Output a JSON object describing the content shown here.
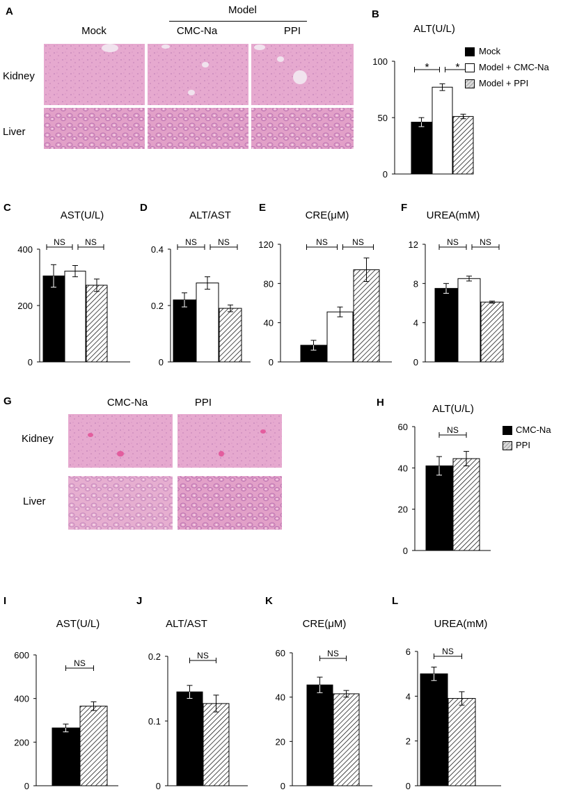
{
  "panels": {
    "A": "A",
    "B": "B",
    "C": "C",
    "D": "D",
    "E": "E",
    "F": "F",
    "G": "G",
    "H": "H",
    "I": "I",
    "J": "J",
    "K": "K",
    "L": "L"
  },
  "histology_top": {
    "group_header": "Model",
    "columns": [
      "Mock",
      "CMC-Na",
      "PPI"
    ],
    "rows": [
      "Kidney",
      "Liver"
    ]
  },
  "histology_bottom": {
    "columns": [
      "CMC-Na",
      "PPI"
    ],
    "rows": [
      "Kidney",
      "Liver"
    ]
  },
  "legend_top": [
    "Mock",
    "Model + CMC-Na",
    "Model + PPI"
  ],
  "legend_bottom": [
    "CMC-Na",
    "PPI"
  ],
  "colors": {
    "black_bar": "#000000",
    "white_bar": "#ffffff",
    "tissue_pink": "#e3a3cb",
    "tissue_dark": "#d886c0"
  },
  "chart_data": [
    {
      "panel": "B",
      "type": "bar",
      "title": "ALT(U/L)",
      "categories": [
        "Mock",
        "Model + CMC-Na",
        "Model + PPI"
      ],
      "values": [
        46,
        77,
        51
      ],
      "errors": [
        4,
        3,
        2
      ],
      "yticks": [
        0,
        50,
        100
      ],
      "ylim": [
        0,
        100
      ],
      "significance": [
        "*",
        "*"
      ],
      "legend_placement": "right"
    },
    {
      "panel": "C",
      "type": "bar",
      "title": "AST(U/L)",
      "categories": [
        "Mock",
        "Model + CMC-Na",
        "Model + PPI"
      ],
      "values": [
        305,
        322,
        272
      ],
      "errors": [
        40,
        20,
        22
      ],
      "yticks": [
        0,
        200,
        400
      ],
      "ylim": [
        0,
        400
      ],
      "significance": [
        "NS",
        "NS"
      ]
    },
    {
      "panel": "D",
      "type": "bar",
      "title": "ALT/AST",
      "categories": [
        "Mock",
        "Model + CMC-Na",
        "Model + PPI"
      ],
      "values": [
        0.22,
        0.28,
        0.19
      ],
      "errors": [
        0.025,
        0.022,
        0.012
      ],
      "yticks": [
        0,
        0.2,
        0.4
      ],
      "ylim": [
        0,
        0.4
      ],
      "significance": [
        "NS",
        "NS"
      ]
    },
    {
      "panel": "E",
      "type": "bar",
      "title": "CRE(μM)",
      "categories": [
        "Mock",
        "Model + CMC-Na",
        "Model + PPI"
      ],
      "values": [
        17,
        51,
        94
      ],
      "errors": [
        5,
        5,
        12
      ],
      "yticks": [
        0,
        40,
        80,
        120
      ],
      "ylim": [
        0,
        120
      ],
      "significance": [
        "NS",
        "NS"
      ]
    },
    {
      "panel": "F",
      "type": "bar",
      "title": "UREA(mM)",
      "categories": [
        "Mock",
        "Model + CMC-Na",
        "Model + PPI"
      ],
      "values": [
        7.5,
        8.5,
        6.1
      ],
      "errors": [
        0.5,
        0.25,
        0.1
      ],
      "yticks": [
        0,
        4,
        8,
        12
      ],
      "ylim": [
        0,
        12
      ],
      "significance": [
        "NS",
        "NS"
      ]
    },
    {
      "panel": "H",
      "type": "bar",
      "title": "ALT(U/L)",
      "categories": [
        "CMC-Na",
        "PPI"
      ],
      "values": [
        41,
        44.5
      ],
      "errors": [
        4.5,
        3.5
      ],
      "yticks": [
        0,
        20,
        40,
        60
      ],
      "ylim": [
        0,
        60
      ],
      "significance": [
        "NS"
      ],
      "legend_placement": "right"
    },
    {
      "panel": "I",
      "type": "bar",
      "title": "AST(U/L)",
      "categories": [
        "CMC-Na",
        "PPI"
      ],
      "values": [
        265,
        365
      ],
      "errors": [
        18,
        20
      ],
      "yticks": [
        0,
        200,
        400,
        600
      ],
      "ylim": [
        0,
        600
      ],
      "significance": [
        "NS"
      ]
    },
    {
      "panel": "J",
      "type": "bar",
      "title": "ALT/AST",
      "categories": [
        "CMC-Na",
        "PPI"
      ],
      "values": [
        0.145,
        0.127
      ],
      "errors": [
        0.01,
        0.013
      ],
      "yticks": [
        0,
        0.1,
        0.2
      ],
      "ylim": [
        0,
        0.2
      ],
      "significance": [
        "NS"
      ]
    },
    {
      "panel": "K",
      "type": "bar",
      "title": "CRE(μM)",
      "categories": [
        "CMC-Na",
        "PPI"
      ],
      "values": [
        45.5,
        41.5
      ],
      "errors": [
        3.5,
        1.5
      ],
      "yticks": [
        0,
        20,
        40,
        60
      ],
      "ylim": [
        0,
        60
      ],
      "significance": [
        "NS"
      ]
    },
    {
      "panel": "L",
      "type": "bar",
      "title": "UREA(mM)",
      "categories": [
        "CMC-Na",
        "PPI"
      ],
      "values": [
        5.0,
        3.9
      ],
      "errors": [
        0.3,
        0.3
      ],
      "yticks": [
        0,
        2,
        4,
        6
      ],
      "ylim": [
        0,
        6
      ],
      "significance": [
        "NS"
      ]
    }
  ]
}
